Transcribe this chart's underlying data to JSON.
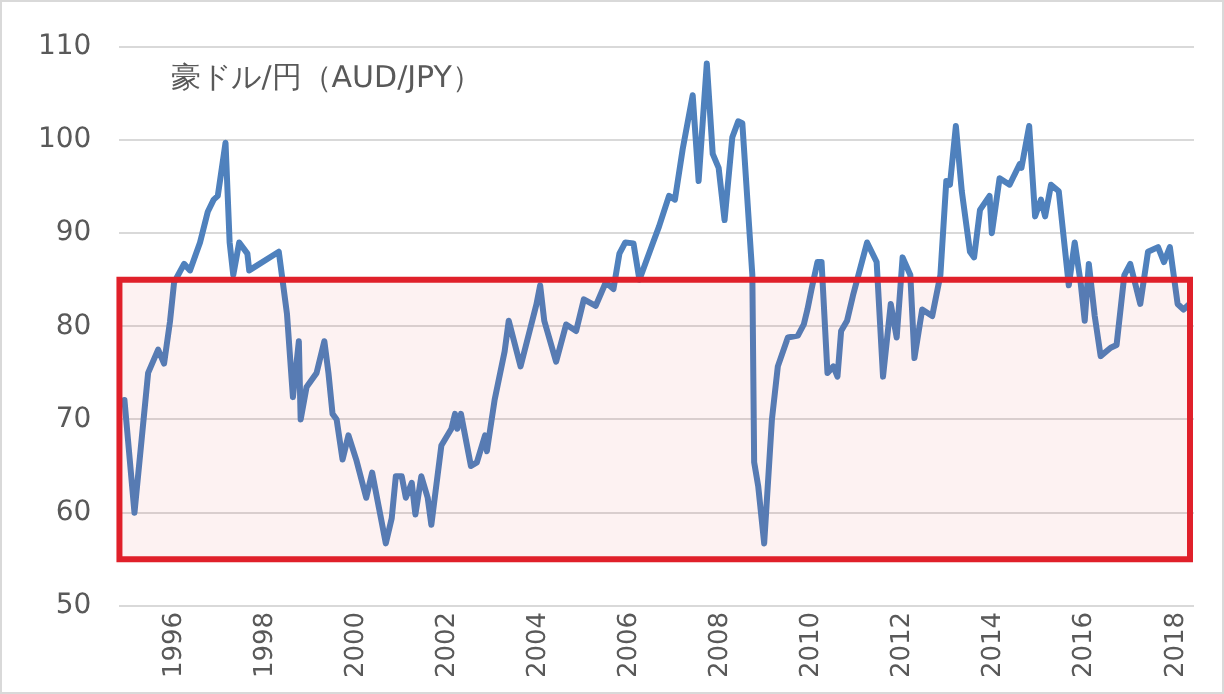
{
  "chart_data": {
    "type": "line",
    "title": "豪ドル/円（AUD/JPY）",
    "x": [
      1994.91,
      1995.13,
      1995.43,
      1995.65,
      1995.78,
      1995.91,
      1996.0,
      1996.22,
      1996.35,
      1996.57,
      1996.74,
      1996.87,
      1996.96,
      1997.13,
      1997.22,
      1997.3,
      1997.43,
      1997.61,
      1997.65,
      1998.3,
      1998.48,
      1998.61,
      1998.74,
      1998.78,
      1998.91,
      1999.13,
      1999.3,
      1999.39,
      1999.48,
      1999.57,
      1999.7,
      1999.83,
      2000.0,
      2000.22,
      2000.35,
      2000.65,
      2000.78,
      2000.87,
      2001.0,
      2001.09,
      2001.22,
      2001.3,
      2001.43,
      2001.57,
      2001.65,
      2001.87,
      2002.09,
      2002.17,
      2002.22,
      2002.3,
      2002.52,
      2002.65,
      2002.83,
      2002.87,
      2003.04,
      2003.26,
      2003.35,
      2003.61,
      2003.96,
      2004.04,
      2004.13,
      2004.39,
      2004.61,
      2004.83,
      2005.0,
      2005.26,
      2005.48,
      2005.65,
      2005.78,
      2005.91,
      2006.09,
      2006.22,
      2006.52,
      2006.65,
      2006.87,
      2007.0,
      2007.17,
      2007.39,
      2007.52,
      2007.7,
      2007.83,
      2007.96,
      2008.09,
      2008.26,
      2008.39,
      2008.48,
      2008.7,
      2008.74,
      2008.83,
      2008.96,
      2009.13,
      2009.26,
      2009.48,
      2009.7,
      2009.83,
      2009.91,
      2010.0,
      2010.13,
      2010.22,
      2010.35,
      2010.48,
      2010.57,
      2010.65,
      2010.78,
      2010.91,
      2011.22,
      2011.43,
      2011.57,
      2011.74,
      2011.87,
      2012.0,
      2012.17,
      2012.26,
      2012.43,
      2012.65,
      2012.83,
      2012.96,
      2013.04,
      2013.17,
      2013.3,
      2013.48,
      2013.57,
      2013.7,
      2013.91,
      2013.96,
      2014.13,
      2014.35,
      2014.57,
      2014.61,
      2014.78,
      2014.91,
      2015.04,
      2015.13,
      2015.26,
      2015.43,
      2015.65,
      2015.78,
      2015.91,
      2016.0,
      2016.09,
      2016.22,
      2016.35,
      2016.57,
      2016.7,
      2016.87,
      2017.0,
      2017.22,
      2017.39,
      2017.61,
      2017.74,
      2017.87,
      2018.04,
      2018.17,
      2018.3
    ],
    "series": [
      {
        "color": "#4f81bd",
        "values": [
          72.1,
          60,
          75,
          77.5,
          76,
          80.5,
          84.7,
          86.7,
          86,
          89,
          92.3,
          93.6,
          94,
          99.7,
          89,
          85.5,
          89,
          87.8,
          86,
          88,
          81.3,
          72.4,
          78.4,
          70,
          73.5,
          75,
          78.4,
          75,
          70.6,
          70,
          65.7,
          68.3,
          65.7,
          61.6,
          64.3,
          56.7,
          59.4,
          63.9,
          63.9,
          61.6,
          63.2,
          59.8,
          63.9,
          61.6,
          58.7,
          67.2,
          69,
          70.6,
          69,
          70.6,
          65,
          65.4,
          68.3,
          66.6,
          72.1,
          77.3,
          80.6,
          75.7,
          82.4,
          84.4,
          80.6,
          76.2,
          80.2,
          79.5,
          82.9,
          82.2,
          84.7,
          84,
          87.8,
          89,
          88.9,
          85,
          89,
          90.7,
          94,
          93.6,
          99,
          104.8,
          95.6,
          108.2,
          98.5,
          97,
          91.4,
          100.3,
          102,
          101.8,
          85.5,
          65.4,
          62.8,
          56.7,
          70,
          75.7,
          78.8,
          79,
          80.2,
          81.8,
          84,
          86.9,
          86.9,
          75,
          75.7,
          74.6,
          79.5,
          80.6,
          83.3,
          89,
          86.9,
          74.6,
          82.4,
          78.8,
          87.4,
          85.5,
          76.6,
          81.8,
          81.1,
          85.5,
          95.6,
          95.2,
          101.5,
          94.5,
          88,
          87.4,
          92.5,
          94,
          90,
          95.9,
          95.2,
          97.4,
          97,
          101.5,
          91.8,
          93.6,
          91.8,
          95.2,
          94.5,
          84.4,
          89,
          84.7,
          80.6,
          86.7,
          81.1,
          76.8,
          77.7,
          78,
          85.5,
          86.7,
          82.4,
          88,
          88.5,
          86.9,
          88.5,
          82.4,
          81.8,
          82.4
        ]
      }
    ],
    "xlim": [
      1994.8,
      2018.4
    ],
    "xticks": [
      1996,
      1998,
      2000,
      2002,
      2004,
      2006,
      2008,
      2010,
      2012,
      2014,
      2016,
      2018
    ],
    "ylim": [
      50,
      110
    ],
    "yticks": [
      50,
      60,
      70,
      80,
      90,
      100,
      110
    ],
    "bands": [
      {
        "axis": "y",
        "from": 55,
        "to": 85,
        "color": "#e0202a"
      }
    ],
    "grid": "y",
    "legend": false,
    "marker": "none",
    "line_style": "solid"
  }
}
